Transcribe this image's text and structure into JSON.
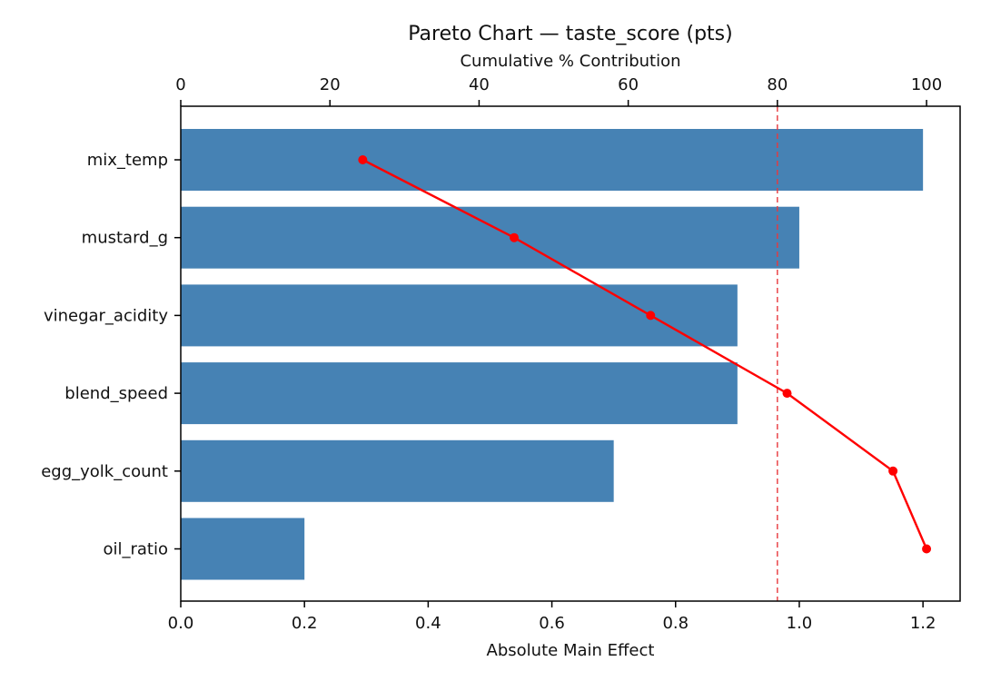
{
  "chart_data": {
    "type": "bar",
    "orientation": "horizontal",
    "title": "Pareto Chart — taste_score (pts)",
    "xlabel": "Absolute Main Effect",
    "x2label": "Cumulative % Contribution",
    "ylabel": "",
    "categories": [
      "mix_temp",
      "mustard_g",
      "vinegar_acidity",
      "blend_speed",
      "egg_yolk_count",
      "oil_ratio"
    ],
    "values": [
      1.2,
      1.0,
      0.9,
      0.9,
      0.7,
      0.2
    ],
    "cumulative_percent": [
      24.4,
      44.7,
      63.0,
      81.3,
      95.5,
      100.0
    ],
    "threshold_percent": 80,
    "xlim": [
      0,
      1.26
    ],
    "x2lim": [
      0,
      104.5
    ],
    "xticks": [
      "0.0",
      "0.2",
      "0.4",
      "0.6",
      "0.8",
      "1.0",
      "1.2"
    ],
    "x2ticks": [
      "0",
      "20",
      "40",
      "60",
      "80",
      "100"
    ],
    "grid": false,
    "colors": {
      "bar": "#4682b4",
      "cumulative_line": "#ff0000",
      "threshold": "#e8383d"
    }
  }
}
